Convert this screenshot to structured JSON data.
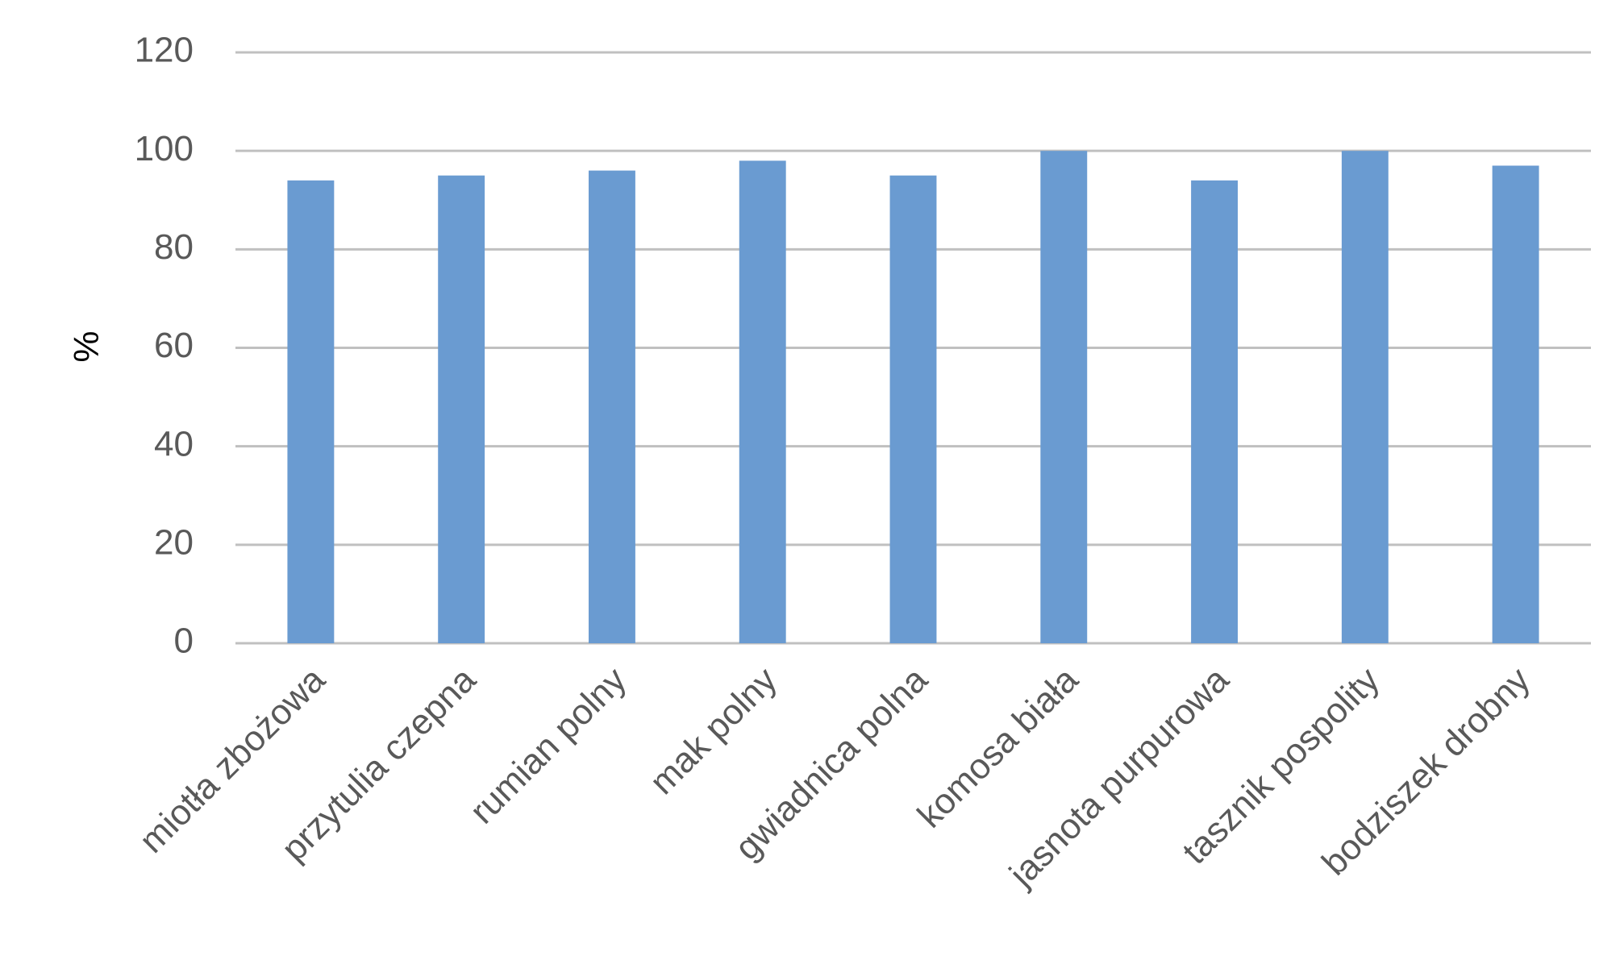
{
  "chart_data": {
    "type": "bar",
    "ylabel": "%",
    "categories": [
      "miotła zbożowa",
      "przytulia czepna",
      "rumian polny",
      "mak polny",
      "gwiadnica polna",
      "komosa biała",
      "jasnota purpurowa",
      "tasznik pospolity",
      "bodziszek drobny"
    ],
    "values": [
      94,
      95,
      96,
      98,
      95,
      100,
      94,
      100,
      97
    ],
    "color": "#6a9bd1",
    "ylim": [
      0,
      120
    ],
    "yticks": [
      0,
      20,
      40,
      60,
      80,
      100,
      120
    ],
    "grid": true
  }
}
